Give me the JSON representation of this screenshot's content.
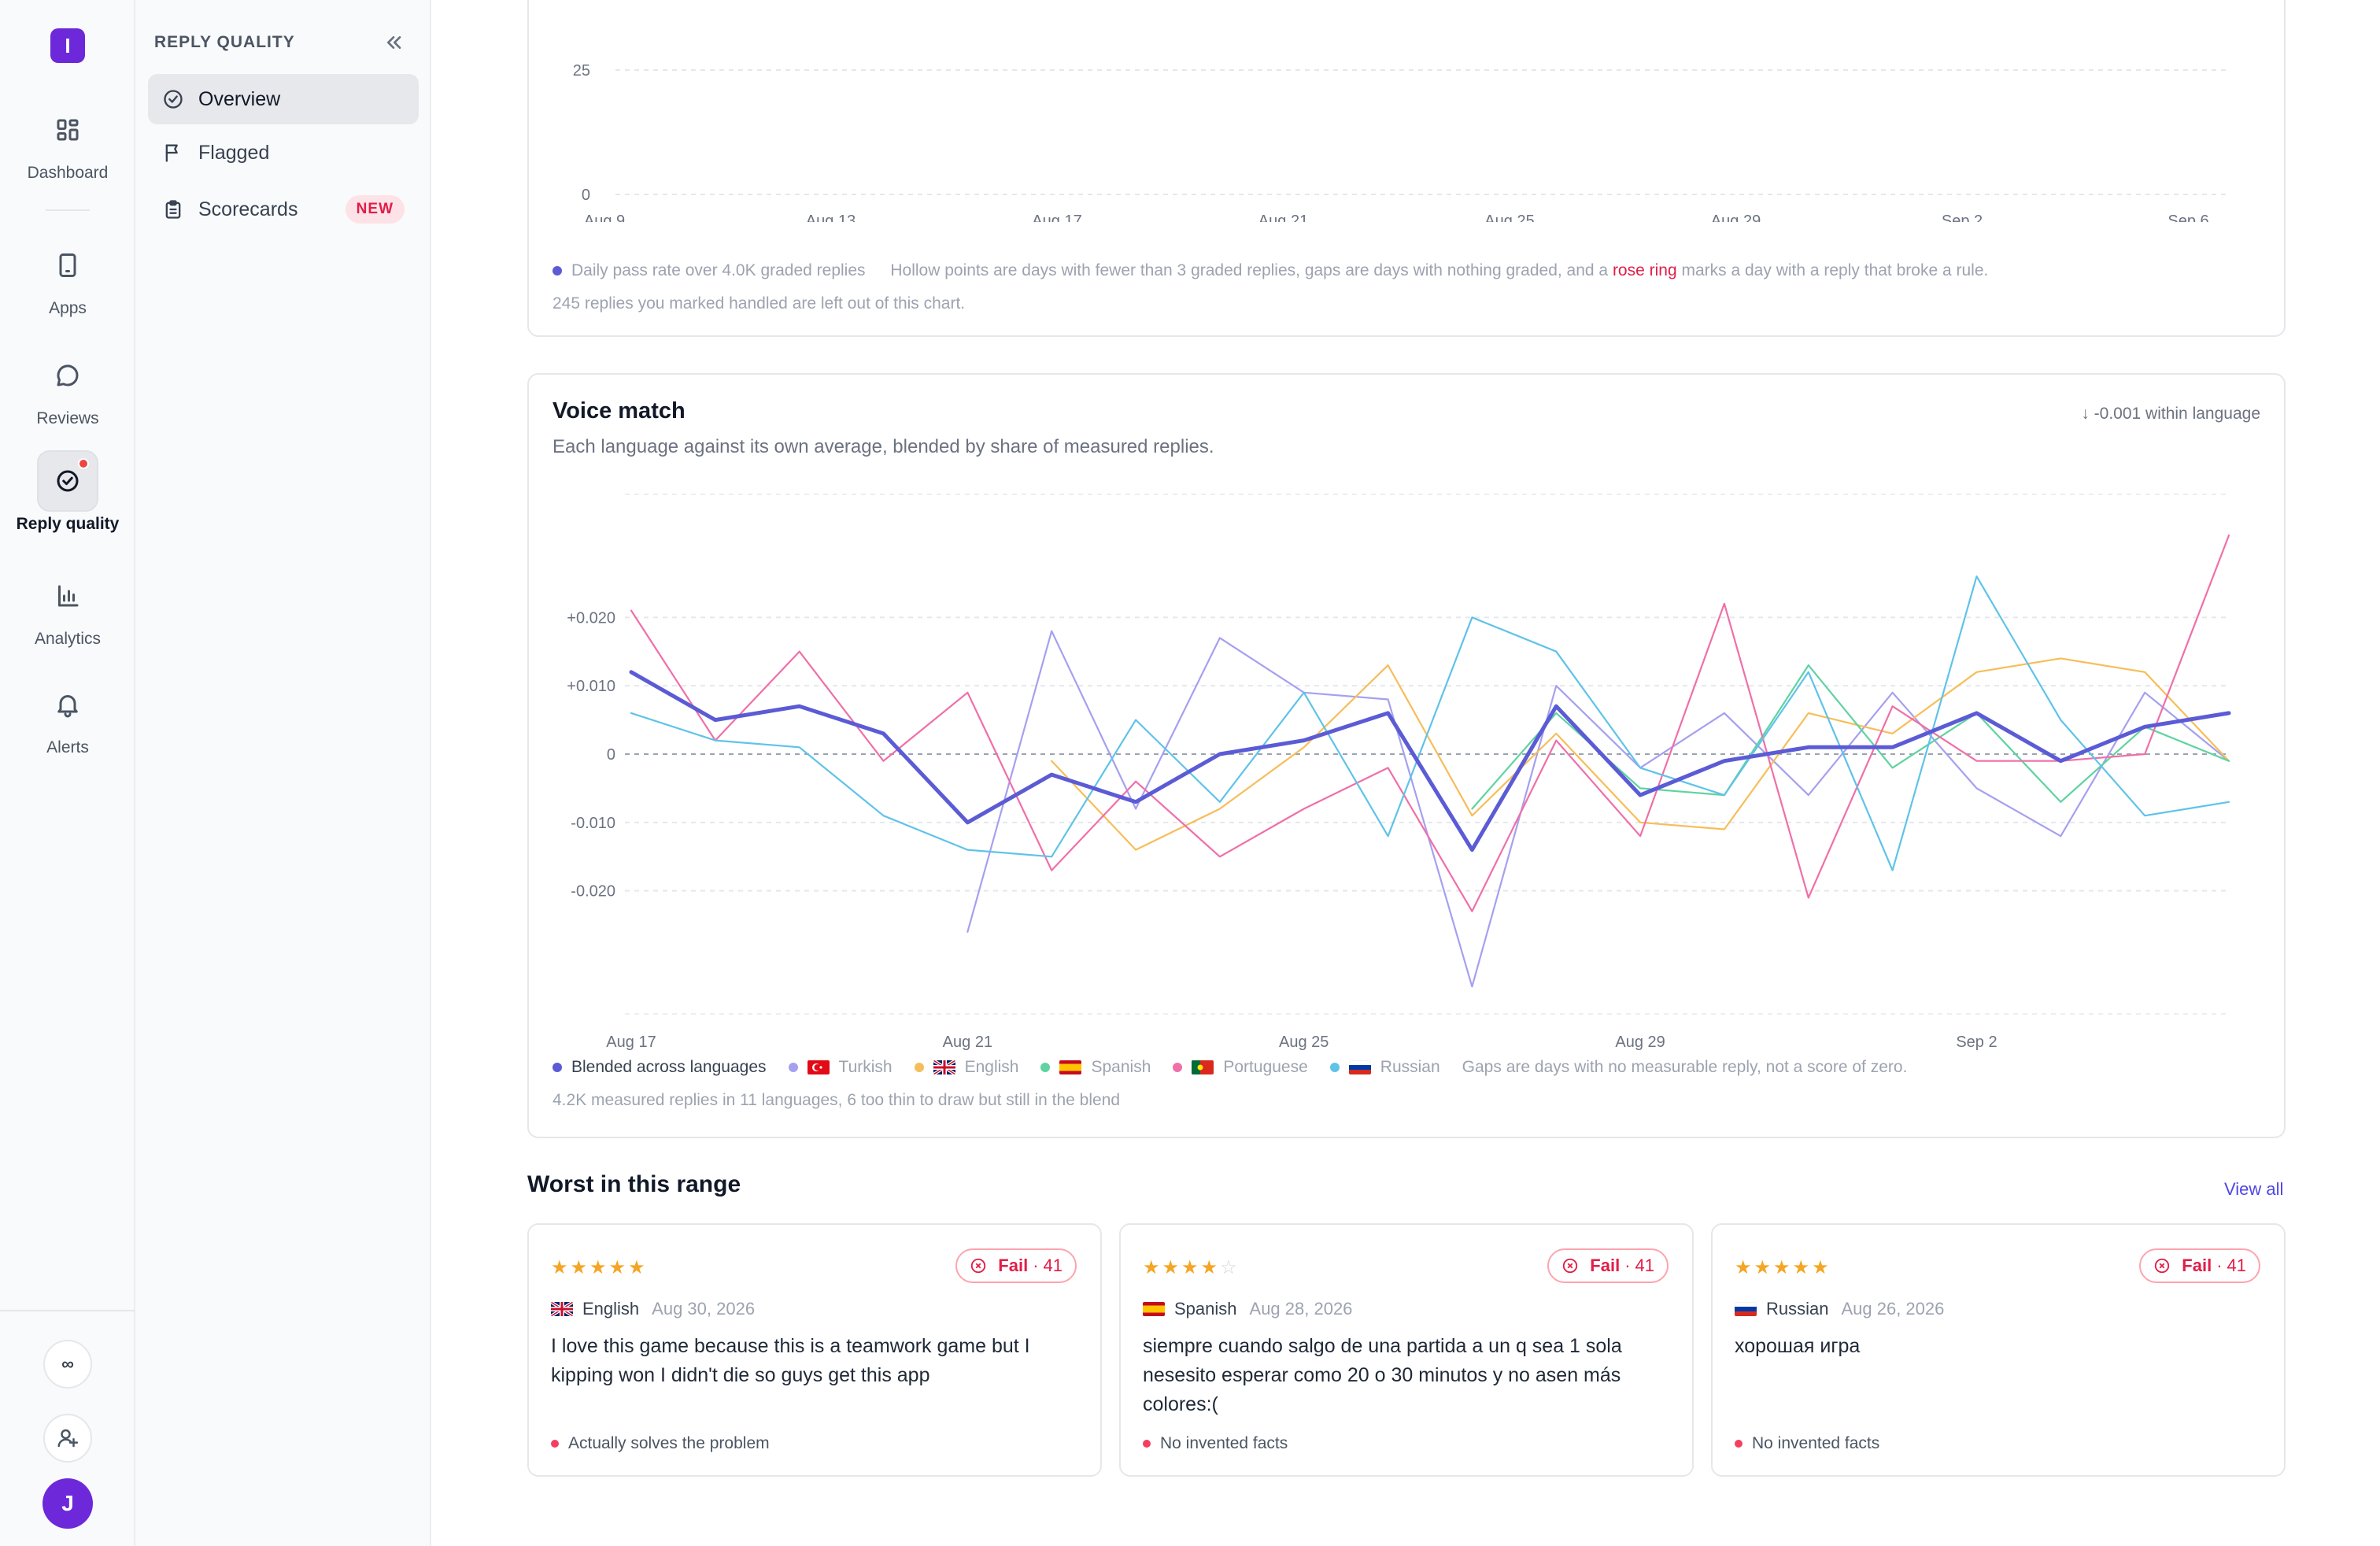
{
  "rail": {
    "logo": "I",
    "items": [
      {
        "label": "Dashboard",
        "icon": "grid-icon"
      },
      {
        "label": "Apps",
        "icon": "phone-icon"
      },
      {
        "label": "Reviews",
        "icon": "chat-icon"
      },
      {
        "label": "Reply quality",
        "icon": "check-circle-icon",
        "active": true
      },
      {
        "label": "Analytics",
        "icon": "bar-chart-icon"
      },
      {
        "label": "Alerts",
        "icon": "bell-icon"
      }
    ],
    "bottom": {
      "infinity": "∞",
      "avatar": "J"
    }
  },
  "sidebar": {
    "title": "REPLY QUALITY",
    "items": [
      {
        "label": "Overview",
        "active": true
      },
      {
        "label": "Flagged"
      },
      {
        "label": "Scorecards",
        "badge": "NEW"
      }
    ]
  },
  "pass_card": {
    "y_ticks": [
      "25",
      "0"
    ],
    "x_ticks": [
      "Aug 9",
      "Aug 13",
      "Aug 17",
      "Aug 21",
      "Aug 25",
      "Aug 29",
      "Sep 2",
      "Sep 6"
    ],
    "legend_series": "Daily pass rate over 4.0K graded replies",
    "legend_note_a": "Hollow points are days with fewer than 3 graded replies, gaps are days with nothing graded, and a",
    "legend_note_rose": "rose ring",
    "legend_note_b": "marks a day with a reply that broke a rule.",
    "footnote": "245 replies you marked handled are left out of this chart."
  },
  "voice_card": {
    "title": "Voice match",
    "subtitle": "Each language against its own average, blended by share of measured replies.",
    "delta": "-0.001 within language",
    "gap_note": "Gaps are days with no measurable reply, not a score of zero.",
    "footnote": "4.2K measured replies in 11 languages, 6 too thin to draw but still in the blend"
  },
  "chart_data": {
    "type": "line",
    "x": [
      "Aug 17",
      "Aug 18",
      "Aug 19",
      "Aug 20",
      "Aug 21",
      "Aug 22",
      "Aug 23",
      "Aug 24",
      "Aug 25",
      "Aug 26",
      "Aug 27",
      "Aug 28",
      "Aug 29",
      "Aug 30",
      "Aug 31",
      "Sep 1",
      "Sep 2",
      "Sep 3",
      "Sep 4",
      "Sep 5"
    ],
    "x_ticks": [
      "Aug 17",
      "Aug 21",
      "Aug 25",
      "Aug 29",
      "Sep 2"
    ],
    "y_ticks": [
      "+0.020",
      "+0.010",
      "0",
      "-0.010",
      "-0.020"
    ],
    "ylim": [
      -0.038,
      0.038
    ],
    "grid": true,
    "series": [
      {
        "name": "Turkish",
        "color": "#a5a0f0",
        "values": [
          null,
          null,
          null,
          null,
          -0.026,
          0.018,
          -0.008,
          0.017,
          0.009,
          0.008,
          -0.034,
          0.01,
          -0.002,
          0.006,
          -0.006,
          0.009,
          -0.005,
          -0.012,
          0.009,
          -0.001
        ]
      },
      {
        "name": "English",
        "color": "#f6be5a",
        "values": [
          null,
          null,
          null,
          null,
          null,
          -0.001,
          -0.014,
          -0.008,
          0.001,
          0.013,
          -0.009,
          0.003,
          -0.01,
          -0.011,
          0.006,
          0.003,
          0.012,
          0.014,
          0.012,
          -0.001
        ]
      },
      {
        "name": "Spanish",
        "color": "#5fd3a0",
        "values": [
          null,
          null,
          null,
          null,
          null,
          null,
          null,
          null,
          null,
          null,
          -0.008,
          0.006,
          -0.005,
          -0.006,
          0.013,
          -0.002,
          0.006,
          -0.007,
          0.004,
          -0.001
        ]
      },
      {
        "name": "Portuguese",
        "color": "#f06fa8",
        "values": [
          0.021,
          0.002,
          0.015,
          -0.001,
          0.009,
          -0.017,
          -0.004,
          -0.015,
          -0.008,
          -0.002,
          -0.023,
          0.002,
          -0.012,
          0.022,
          -0.021,
          0.007,
          -0.001,
          -0.001,
          0.0,
          0.032
        ]
      },
      {
        "name": "Russian",
        "color": "#5fc3e8",
        "values": [
          0.006,
          0.002,
          0.001,
          -0.009,
          -0.014,
          -0.015,
          0.005,
          -0.007,
          0.009,
          -0.012,
          0.02,
          0.015,
          -0.002,
          -0.006,
          0.012,
          -0.017,
          0.026,
          0.005,
          -0.009,
          -0.007
        ]
      },
      {
        "name": "Blended across languages",
        "color": "#5b5bd6",
        "values": [
          0.012,
          0.005,
          0.007,
          0.003,
          -0.01,
          -0.003,
          -0.007,
          0.0,
          0.002,
          0.006,
          -0.014,
          0.007,
          -0.006,
          -0.001,
          0.001,
          0.001,
          0.006,
          -0.001,
          0.004,
          0.006
        ]
      }
    ]
  },
  "worst": {
    "title": "Worst in this range",
    "view_all": "View all",
    "fail_label": "Fail",
    "reviews": [
      {
        "stars": 5,
        "language": "English",
        "flag": "uk",
        "date": "Aug 30, 2026",
        "score": "41",
        "text": "I love this game because this is a teamwork game but I kipping won I didn't die so guys get this app",
        "rule": "Actually solves the problem"
      },
      {
        "stars": 4,
        "language": "Spanish",
        "flag": "es",
        "date": "Aug 28, 2026",
        "score": "41",
        "text": "siempre cuando salgo de una partida a un q sea 1 sola nesesito esperar como 20 o 30 minutos y no asen más colores:(",
        "rule": "No invented facts"
      },
      {
        "stars": 5,
        "language": "Russian",
        "flag": "ru",
        "date": "Aug 26, 2026",
        "score": "41",
        "text": "хорошая игра",
        "rule": "No invented facts"
      }
    ]
  }
}
